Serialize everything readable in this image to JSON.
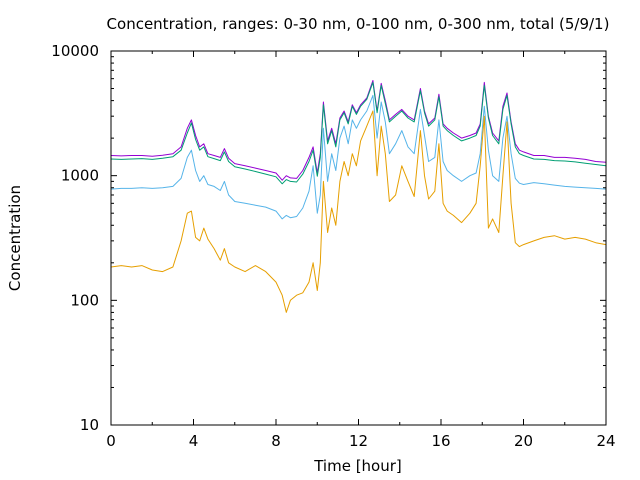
{
  "chart_data": {
    "type": "line",
    "title": "Concentration, ranges: 0-30 nm, 0-100 nm, 0-300 nm, total (5/9/1)",
    "xlabel": "Time [hour]",
    "ylabel": "Concentration",
    "xlim": [
      0,
      24
    ],
    "ylim": [
      10,
      10000
    ],
    "yscale": "log",
    "grid": false,
    "legend": "none",
    "x_ticks": [
      "0",
      "4",
      "8",
      "12",
      "16",
      "20",
      "24"
    ],
    "y_ticks": [
      "10",
      "100",
      "1000",
      "10000"
    ],
    "x": [
      0,
      0.5,
      1,
      1.5,
      2,
      2.5,
      3,
      3.4,
      3.7,
      3.9,
      4.1,
      4.3,
      4.5,
      4.7,
      5,
      5.3,
      5.5,
      5.7,
      6,
      6.5,
      7,
      7.5,
      8,
      8.3,
      8.5,
      8.7,
      9,
      9.3,
      9.6,
      9.8,
      10,
      10.15,
      10.3,
      10.5,
      10.7,
      10.9,
      11.1,
      11.3,
      11.5,
      11.7,
      11.9,
      12.1,
      12.4,
      12.7,
      12.9,
      13.1,
      13.3,
      13.5,
      13.8,
      14.1,
      14.4,
      14.7,
      15.0,
      15.2,
      15.4,
      15.7,
      15.9,
      16.1,
      16.3,
      16.6,
      17.0,
      17.4,
      17.7,
      17.9,
      18.1,
      18.3,
      18.5,
      18.8,
      19.0,
      19.2,
      19.4,
      19.6,
      19.8,
      20,
      20.5,
      21,
      21.5,
      22,
      22.5,
      23,
      23.5,
      24
    ],
    "series": [
      {
        "color": "#9400d3",
        "values": [
          1450,
          1440,
          1450,
          1450,
          1430,
          1460,
          1500,
          1700,
          2400,
          2800,
          2100,
          1700,
          1800,
          1500,
          1450,
          1400,
          1650,
          1380,
          1250,
          1200,
          1150,
          1100,
          1050,
          920,
          1000,
          960,
          950,
          1100,
          1400,
          1700,
          1050,
          1500,
          3900,
          1900,
          2400,
          1800,
          2900,
          3300,
          2700,
          3700,
          3200,
          3700,
          4200,
          5800,
          3300,
          5500,
          4000,
          2800,
          3100,
          3400,
          3000,
          2800,
          5000,
          3300,
          2600,
          2900,
          4500,
          2600,
          2400,
          2200,
          2000,
          2100,
          2200,
          2600,
          5600,
          3000,
          2200,
          1900,
          3600,
          4600,
          2700,
          1800,
          1600,
          1550,
          1450,
          1450,
          1400,
          1400,
          1380,
          1350,
          1300,
          1280
        ]
      },
      {
        "color": "#009e73",
        "values": [
          1360,
          1350,
          1360,
          1370,
          1350,
          1380,
          1420,
          1600,
          2200,
          2650,
          1950,
          1600,
          1700,
          1420,
          1370,
          1320,
          1550,
          1300,
          1180,
          1130,
          1080,
          1030,
          980,
          860,
          930,
          900,
          890,
          1030,
          1300,
          1600,
          990,
          1400,
          3700,
          1800,
          2300,
          1700,
          2800,
          3200,
          2600,
          3600,
          3100,
          3600,
          4100,
          5600,
          3200,
          5300,
          3800,
          2700,
          3000,
          3300,
          2900,
          2700,
          4800,
          3200,
          2500,
          2800,
          4300,
          2500,
          2300,
          2100,
          1900,
          2000,
          2100,
          2500,
          5300,
          2900,
          2100,
          1800,
          3400,
          4400,
          2600,
          1700,
          1500,
          1450,
          1360,
          1350,
          1320,
          1310,
          1290,
          1260,
          1230,
          1200
        ]
      },
      {
        "color": "#56b4e9",
        "values": [
          780,
          790,
          790,
          800,
          790,
          800,
          820,
          950,
          1400,
          1600,
          1100,
          900,
          1000,
          850,
          820,
          760,
          900,
          700,
          620,
          600,
          580,
          560,
          520,
          450,
          480,
          460,
          470,
          550,
          750,
          1200,
          500,
          700,
          2400,
          900,
          1500,
          1100,
          2000,
          2500,
          1800,
          2800,
          2400,
          2800,
          3300,
          4400,
          2000,
          3900,
          2700,
          1500,
          1800,
          2300,
          1700,
          1500,
          3400,
          2100,
          1300,
          1400,
          2800,
          1300,
          1100,
          1000,
          900,
          1000,
          1050,
          1500,
          3600,
          1600,
          1000,
          900,
          2000,
          3000,
          1500,
          950,
          870,
          850,
          880,
          860,
          840,
          820,
          810,
          800,
          790,
          780
        ]
      },
      {
        "color": "#e69f00",
        "values": [
          185,
          190,
          185,
          190,
          175,
          170,
          185,
          300,
          500,
          520,
          320,
          300,
          380,
          310,
          260,
          210,
          260,
          200,
          185,
          170,
          190,
          170,
          140,
          110,
          80,
          100,
          110,
          115,
          140,
          200,
          120,
          200,
          900,
          350,
          550,
          400,
          900,
          1300,
          1000,
          1500,
          1200,
          1900,
          2500,
          3300,
          1000,
          2500,
          1500,
          620,
          700,
          1200,
          900,
          680,
          2300,
          1000,
          650,
          750,
          1800,
          600,
          520,
          480,
          420,
          500,
          600,
          1200,
          3000,
          380,
          450,
          350,
          1000,
          2700,
          600,
          290,
          270,
          280,
          300,
          320,
          330,
          310,
          320,
          310,
          290,
          280
        ]
      }
    ]
  }
}
